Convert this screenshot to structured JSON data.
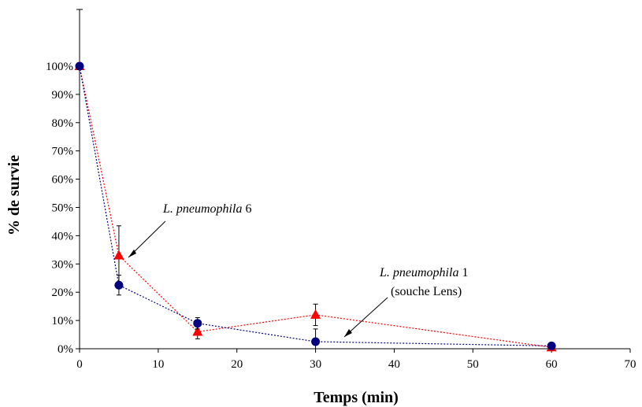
{
  "chart_data": {
    "type": "line",
    "xlabel": "Temps (min)",
    "ylabel": "% de survie",
    "xlim": [
      0,
      70
    ],
    "ylim": [
      0,
      100
    ],
    "x_ticks": [
      "0",
      "10",
      "20",
      "30",
      "40",
      "50",
      "60",
      "70"
    ],
    "y_ticks": [
      "0%",
      "10%",
      "20%",
      "30%",
      "40%",
      "50%",
      "60%",
      "70%",
      "80%",
      "90%",
      "100%"
    ],
    "grid": false,
    "legend": "none",
    "series": [
      {
        "marker": "triangle",
        "color": "#ff0000",
        "line_style": "dotted",
        "x": [
          0,
          5,
          15,
          30,
          60
        ],
        "y": [
          100,
          33,
          6,
          12,
          0.5
        ],
        "error": [
          0,
          10.5,
          2.5,
          3.8,
          0
        ]
      },
      {
        "marker": "circle",
        "color": "#00007f",
        "line_style": "dotted",
        "x": [
          0,
          5,
          15,
          30,
          60
        ],
        "y": [
          100,
          22.5,
          9,
          2.5,
          1
        ],
        "error": [
          0,
          3.5,
          2,
          4.5,
          0
        ]
      }
    ],
    "annotations": [
      {
        "italic": "L. pneumophila",
        "rest": " 6",
        "second_line": ""
      },
      {
        "italic": "L. pneumophila",
        "rest": " 1",
        "second_line": "(souche Lens)"
      }
    ]
  }
}
